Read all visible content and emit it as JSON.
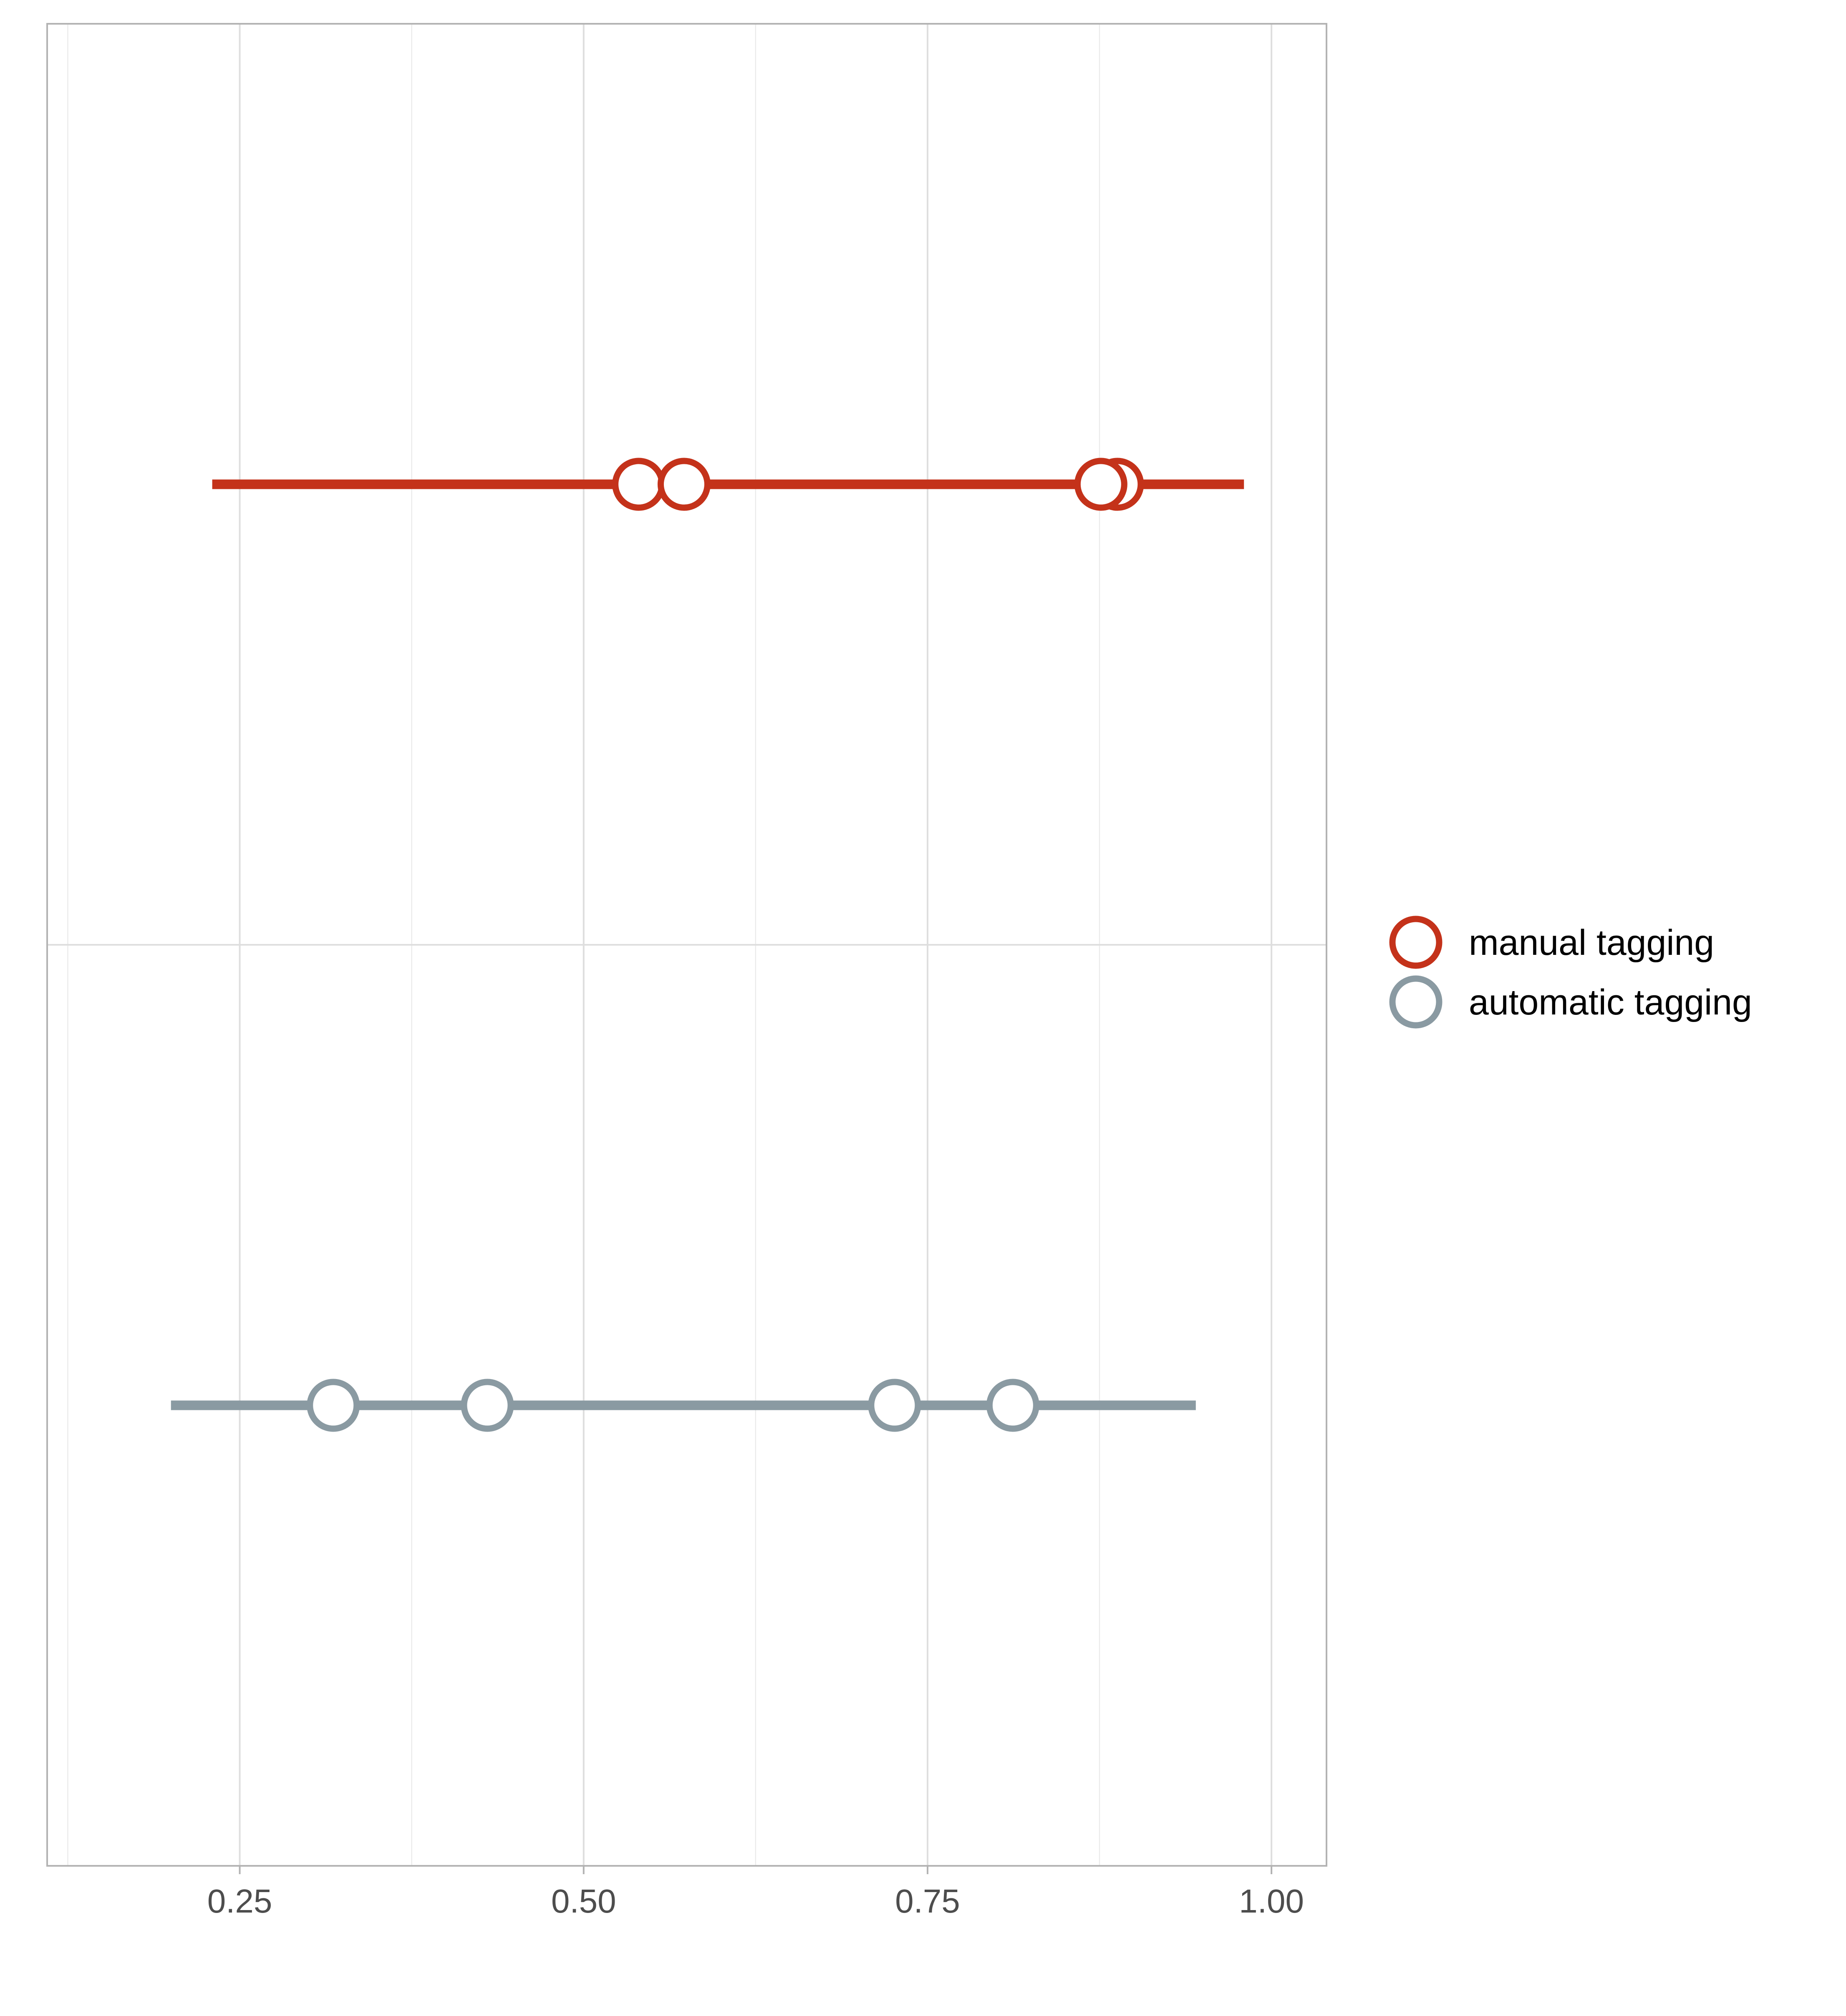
{
  "chart_data": {
    "type": "scatter",
    "subtype": "dot-interval",
    "title": "",
    "xlabel": "",
    "ylabel": "",
    "xlim": [
      0.11,
      1.04
    ],
    "x_ticks": [
      0.25,
      0.5,
      0.75,
      1.0
    ],
    "x_tick_labels": [
      "0.25",
      "0.50",
      "0.75",
      "1.00"
    ],
    "grid": true,
    "legend_position": "right",
    "series": [
      {
        "name": "manual tagging",
        "color": "#c4321a",
        "interval": [
          0.23,
          0.98
        ],
        "points": [
          0.54,
          0.573,
          0.888,
          0.876
        ]
      },
      {
        "name": "automatic tagging",
        "color": "#8a9aa2",
        "interval": [
          0.2,
          0.945
        ],
        "points": [
          0.318,
          0.43,
          0.726,
          0.812
        ]
      }
    ]
  }
}
